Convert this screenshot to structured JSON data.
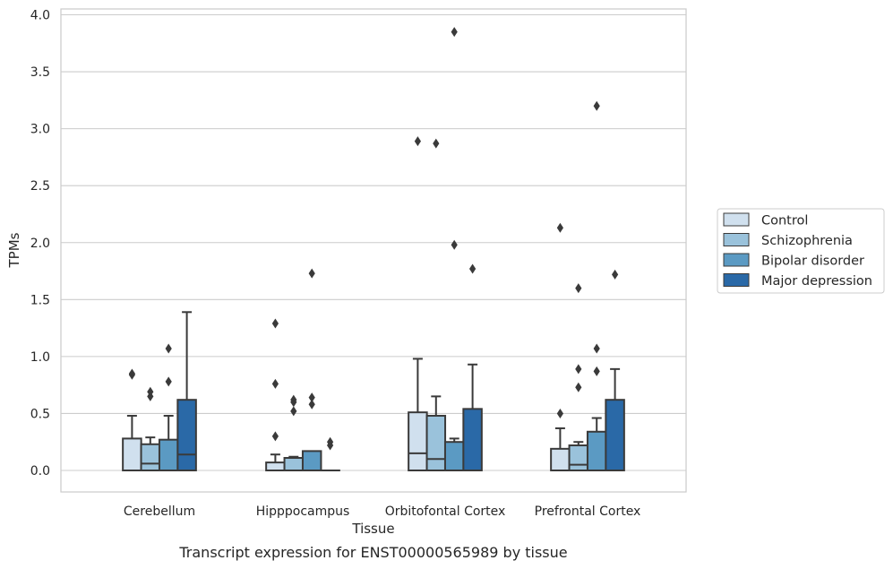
{
  "chart_data": {
    "type": "box",
    "caption": "Transcript expression for ENST00000565989 by tissue",
    "xlabel": "Tissue",
    "ylabel": "TPMs",
    "ylim": [
      -0.18,
      4.05
    ],
    "yticks": [
      0.0,
      0.5,
      1.0,
      1.5,
      2.0,
      2.5,
      3.0,
      3.5,
      4.0
    ],
    "ytick_labels": [
      "0.0",
      "0.5",
      "1.0",
      "1.5",
      "2.0",
      "2.5",
      "3.0",
      "3.5",
      "4.0"
    ],
    "grid": "horizontal",
    "legend_position": "right",
    "categories": [
      "Cerebellum",
      "Hipppocampus",
      "Orbitofontal Cortex",
      "Prefrontal Cortex"
    ],
    "series": [
      {
        "name": "Control",
        "color": "#d0e0ee",
        "boxes": [
          {
            "whislo": 0.0,
            "q1": 0.0,
            "med": 0.0,
            "q3": 0.28,
            "whishi": 0.48,
            "fliers": [
              0.84,
              0.85
            ]
          },
          {
            "whislo": 0.0,
            "q1": 0.0,
            "med": 0.0,
            "q3": 0.07,
            "whishi": 0.14,
            "fliers": [
              0.3,
              0.76,
              1.29
            ]
          },
          {
            "whislo": 0.0,
            "q1": 0.0,
            "med": 0.15,
            "q3": 0.51,
            "whishi": 0.98,
            "fliers": [
              2.89
            ]
          },
          {
            "whislo": 0.0,
            "q1": 0.0,
            "med": 0.0,
            "q3": 0.19,
            "whishi": 0.37,
            "fliers": [
              0.5,
              2.13
            ]
          }
        ]
      },
      {
        "name": "Schizophrenia",
        "color": "#9ac2db",
        "boxes": [
          {
            "whislo": 0.0,
            "q1": 0.0,
            "med": 0.06,
            "q3": 0.23,
            "whishi": 0.29,
            "fliers": [
              0.65,
              0.69
            ]
          },
          {
            "whislo": 0.0,
            "q1": 0.0,
            "med": 0.0,
            "q3": 0.11,
            "whishi": 0.12,
            "fliers": [
              0.52,
              0.6,
              0.62
            ]
          },
          {
            "whislo": 0.0,
            "q1": 0.0,
            "med": 0.1,
            "q3": 0.48,
            "whishi": 0.65,
            "fliers": [
              2.87
            ]
          },
          {
            "whislo": 0.0,
            "q1": 0.0,
            "med": 0.05,
            "q3": 0.22,
            "whishi": 0.25,
            "fliers": [
              0.73,
              0.89,
              1.6
            ]
          }
        ]
      },
      {
        "name": "Bipolar disorder",
        "color": "#5b9ac3",
        "boxes": [
          {
            "whislo": 0.0,
            "q1": 0.0,
            "med": 0.0,
            "q3": 0.27,
            "whishi": 0.48,
            "fliers": [
              0.78,
              1.07
            ]
          },
          {
            "whislo": 0.0,
            "q1": 0.0,
            "med": 0.0,
            "q3": 0.17,
            "whishi": 0.17,
            "fliers": [
              0.58,
              0.64,
              1.73
            ]
          },
          {
            "whislo": 0.0,
            "q1": 0.0,
            "med": 0.0,
            "q3": 0.25,
            "whishi": 0.28,
            "fliers": [
              1.98,
              3.85
            ]
          },
          {
            "whislo": 0.0,
            "q1": 0.0,
            "med": 0.0,
            "q3": 0.34,
            "whishi": 0.46,
            "fliers": [
              0.87,
              1.07,
              3.2
            ]
          }
        ]
      },
      {
        "name": "Major depression",
        "color": "#2a69a7",
        "boxes": [
          {
            "whislo": 0.0,
            "q1": 0.0,
            "med": 0.14,
            "q3": 0.62,
            "whishi": 1.39,
            "fliers": []
          },
          {
            "whislo": 0.0,
            "q1": 0.0,
            "med": 0.0,
            "q3": 0.0,
            "whishi": 0.0,
            "fliers": [
              0.22,
              0.25
            ]
          },
          {
            "whislo": 0.0,
            "q1": 0.0,
            "med": 0.0,
            "q3": 0.54,
            "whishi": 0.93,
            "fliers": [
              1.77
            ]
          },
          {
            "whislo": 0.0,
            "q1": 0.0,
            "med": 0.0,
            "q3": 0.62,
            "whishi": 0.89,
            "fliers": [
              1.72
            ]
          }
        ]
      }
    ]
  }
}
